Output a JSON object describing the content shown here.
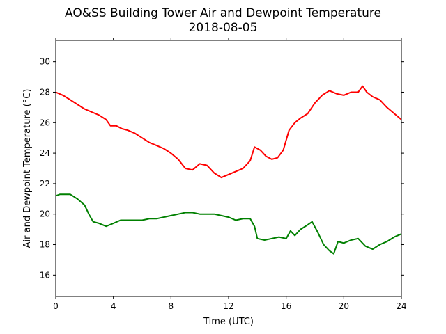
{
  "chart_data": {
    "type": "line",
    "title": "AO&SS Building Tower Air and Dewpoint Temperature",
    "subtitle": "2018-08-05",
    "xlabel": "Time (UTC)",
    "ylabel": "Air and Dewpoint Temperature (°C)",
    "xlim": [
      0,
      24
    ],
    "ylim": [
      14.6,
      31.4
    ],
    "xticks": [
      0,
      4,
      8,
      12,
      16,
      20,
      24
    ],
    "yticks": [
      16,
      18,
      20,
      22,
      24,
      26,
      28,
      30
    ],
    "grid": false,
    "legend": "none",
    "series": [
      {
        "color": "#ff0000",
        "x": [
          0,
          0.5,
          1,
          1.5,
          2,
          2.5,
          3,
          3.5,
          3.8,
          4.2,
          4.6,
          5,
          5.5,
          6,
          6.5,
          7,
          7.5,
          8,
          8.5,
          9,
          9.5,
          10,
          10.5,
          11,
          11.5,
          12,
          12.5,
          13,
          13.5,
          13.8,
          14.2,
          14.6,
          15,
          15.4,
          15.8,
          16.2,
          16.6,
          17,
          17.5,
          18,
          18.5,
          19,
          19.5,
          20,
          20.5,
          21,
          21.3,
          21.6,
          22,
          22.5,
          23,
          23.5,
          24
        ],
        "y": [
          28.0,
          27.8,
          27.5,
          27.2,
          26.9,
          26.7,
          26.5,
          26.2,
          25.8,
          25.8,
          25.6,
          25.5,
          25.3,
          25.0,
          24.7,
          24.5,
          24.3,
          24.0,
          23.6,
          23.0,
          22.9,
          23.3,
          23.2,
          22.7,
          22.4,
          22.6,
          22.8,
          23.0,
          23.5,
          24.4,
          24.2,
          23.8,
          23.6,
          23.7,
          24.2,
          25.5,
          26.0,
          26.3,
          26.6,
          27.3,
          27.8,
          28.1,
          27.9,
          27.8,
          28.0,
          28.0,
          28.4,
          28.0,
          27.7,
          27.5,
          27.0,
          26.6,
          26.2
        ]
      },
      {
        "color": "#008000",
        "x": [
          0,
          0.3,
          0.7,
          1,
          1.5,
          2,
          2.3,
          2.6,
          3,
          3.5,
          4,
          4.5,
          5,
          5.5,
          6,
          6.5,
          7,
          7.5,
          8,
          8.5,
          9,
          9.5,
          10,
          10.5,
          11,
          11.5,
          12,
          12.5,
          13,
          13.5,
          13.8,
          14,
          14.5,
          15,
          15.5,
          16,
          16.3,
          16.6,
          17,
          17.5,
          17.8,
          18.2,
          18.6,
          19,
          19.3,
          19.6,
          20,
          20.5,
          21,
          21.5,
          22,
          22.5,
          23,
          23.5,
          24
        ],
        "y": [
          21.2,
          21.3,
          21.3,
          21.3,
          21.0,
          20.6,
          20.0,
          19.5,
          19.4,
          19.2,
          19.4,
          19.6,
          19.6,
          19.6,
          19.6,
          19.7,
          19.7,
          19.8,
          19.9,
          20.0,
          20.1,
          20.1,
          20.0,
          20.0,
          20.0,
          19.9,
          19.8,
          19.6,
          19.7,
          19.7,
          19.2,
          18.4,
          18.3,
          18.4,
          18.5,
          18.4,
          18.9,
          18.6,
          19.0,
          19.3,
          19.5,
          18.8,
          18.0,
          17.6,
          17.4,
          18.2,
          18.1,
          18.3,
          18.4,
          17.9,
          17.7,
          18.0,
          18.2,
          18.5,
          18.7
        ]
      }
    ]
  }
}
